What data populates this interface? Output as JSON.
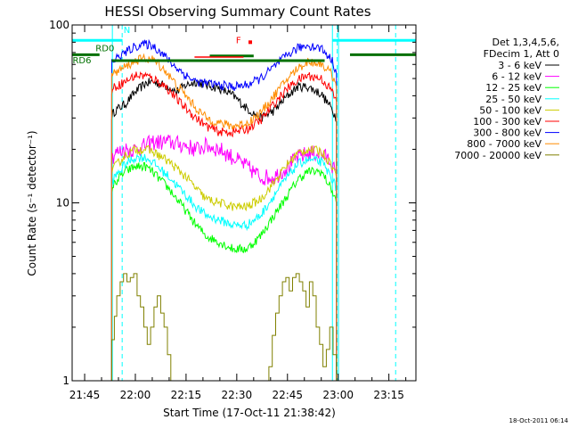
{
  "chart_data": {
    "type": "line",
    "title": "HESSI Observing Summary Count Rates",
    "xlabel": "Start Time (17-Oct-11 21:38:42)",
    "ylabel": "Count Rate (s⁻¹ detector⁻¹)",
    "y_scale": "log",
    "ylim": [
      1,
      100
    ],
    "xlim_minutes": [
      -3.7,
      98
    ],
    "x_ticks": [
      {
        "minute": 0,
        "label": "21:45"
      },
      {
        "minute": 15,
        "label": "22:00"
      },
      {
        "minute": 30,
        "label": "22:15"
      },
      {
        "minute": 45,
        "label": "22:30"
      },
      {
        "minute": 60,
        "label": "22:45"
      },
      {
        "minute": 75,
        "label": "23:00"
      },
      {
        "minute": 90,
        "label": "23:15"
      }
    ],
    "y_ticks": [
      {
        "value": 1,
        "label": "1"
      },
      {
        "value": 10,
        "label": "10"
      },
      {
        "value": 100,
        "label": "100"
      }
    ],
    "legend": {
      "placement": "right",
      "header": [
        "Det 1,3,4,5,6,",
        "FDecim 1, Att 0"
      ]
    },
    "series": [
      {
        "name": "3 - 6 keV",
        "color": "#000000",
        "x": [
          8,
          9,
          12,
          15,
          18,
          20,
          25,
          27,
          30,
          33,
          36,
          40,
          44,
          48,
          52,
          56,
          60,
          63,
          66,
          70,
          73,
          74.5
        ],
        "y": [
          31,
          33,
          36,
          42,
          47,
          48,
          45,
          42,
          46,
          48,
          46,
          44,
          40,
          34,
          30,
          33,
          40,
          45,
          45,
          41,
          34,
          30
        ]
      },
      {
        "name": "6 - 12 keV",
        "color": "#ff00ff",
        "x": [
          8,
          9,
          12,
          15,
          18,
          20,
          25,
          30,
          33,
          36,
          40,
          44,
          48,
          52,
          56,
          60,
          63,
          66,
          70,
          73,
          74.5
        ],
        "y": [
          18,
          19,
          20,
          20,
          21,
          22,
          22,
          21,
          20,
          21,
          20,
          18,
          16,
          14,
          14,
          16,
          18,
          19,
          19,
          17,
          14
        ]
      },
      {
        "name": "12 - 25 keV",
        "color": "#00ff00",
        "x": [
          8,
          9,
          12,
          15,
          18,
          20,
          25,
          30,
          33,
          36,
          40,
          44,
          48,
          52,
          56,
          60,
          63,
          66,
          70,
          73,
          74.5
        ],
        "y": [
          12,
          13,
          15,
          16,
          16,
          15,
          12,
          9,
          7.5,
          6.5,
          6,
          5.5,
          5.5,
          6.5,
          8.5,
          11,
          13.5,
          15,
          15,
          12,
          10
        ]
      },
      {
        "name": "25 - 50 keV",
        "color": "#00ffff",
        "x": [
          8,
          9,
          12,
          15,
          18,
          20,
          25,
          30,
          33,
          36,
          40,
          44,
          48,
          52,
          56,
          60,
          63,
          66,
          70,
          73,
          74.5
        ],
        "y": [
          13,
          14,
          16.5,
          18,
          18,
          17,
          14,
          11,
          9.5,
          8.5,
          8,
          7.5,
          7.5,
          8.5,
          11,
          14,
          16.5,
          17.5,
          17,
          14,
          12
        ]
      },
      {
        "name": "50 - 100 keV",
        "color": "#cccc00",
        "x": [
          8,
          9,
          12,
          15,
          18,
          20,
          25,
          30,
          33,
          36,
          40,
          44,
          48,
          52,
          56,
          60,
          63,
          66,
          70,
          73,
          74.5
        ],
        "y": [
          15,
          16,
          18.5,
          20,
          20,
          19.5,
          17,
          14,
          12,
          10.5,
          10,
          9.5,
          9.5,
          10.5,
          13,
          16.5,
          19,
          20,
          19.5,
          16.5,
          14
        ]
      },
      {
        "name": "100 - 300 keV",
        "color": "#ff0000",
        "x": [
          8,
          9,
          12,
          15,
          18,
          20,
          22,
          24,
          26,
          28,
          30,
          33,
          36,
          40,
          44,
          48,
          52,
          56,
          60,
          63,
          66,
          70,
          73,
          74.5
        ],
        "y": [
          43,
          45,
          48,
          52,
          52,
          50,
          48,
          45,
          41,
          37,
          34,
          30,
          27,
          25,
          25,
          26,
          29,
          36,
          44,
          49,
          52,
          50,
          43,
          37
        ]
      },
      {
        "name": "300 - 800 keV",
        "color": "#0000ff",
        "x": [
          8,
          9,
          12,
          15,
          18,
          20,
          22,
          24,
          26,
          28,
          30,
          33,
          36,
          40,
          44,
          48,
          52,
          56,
          60,
          63,
          66,
          70,
          73,
          74.5
        ],
        "y": [
          62,
          64,
          70,
          76,
          78,
          77,
          72,
          66,
          60,
          56,
          52,
          48,
          47,
          46,
          45,
          46,
          50,
          58,
          68,
          74,
          77,
          74,
          64,
          55
        ]
      },
      {
        "name": "800 - 7000 keV",
        "color": "#ff8c00",
        "x": [
          8,
          9,
          12,
          15,
          18,
          20,
          22,
          24,
          26,
          28,
          30,
          33,
          36,
          40,
          44,
          48,
          52,
          56,
          60,
          63,
          66,
          70,
          73,
          74.5
        ],
        "y": [
          52,
          54,
          58,
          63,
          65,
          64,
          60,
          55,
          49,
          44,
          40,
          34,
          30,
          28,
          27,
          28,
          32,
          40,
          50,
          57,
          62,
          61,
          53,
          46
        ]
      },
      {
        "name": "7000 - 20000 keV",
        "color": "#808000",
        "x": [
          8,
          8.8,
          9.5,
          10.5,
          11.5,
          12.5,
          13.5,
          14.5,
          15.5,
          16.5,
          17.5,
          18.5,
          19.5,
          20.5,
          21.5,
          22.5,
          23.5,
          24.5,
          25.5,
          26.5,
          54.5,
          55.5,
          56.5,
          57.5,
          58.5,
          59.5,
          60.5,
          61.5,
          62.5,
          63.5,
          64.5,
          65.5,
          66.5,
          67.5,
          68.5,
          69.5,
          70.5,
          71.5,
          72.5,
          73.5,
          74.5
        ],
        "y": [
          1.7,
          2.3,
          3.0,
          3.6,
          4.0,
          3.6,
          3.8,
          4.0,
          3.0,
          2.6,
          2.0,
          1.6,
          2.0,
          2.6,
          3.0,
          2.4,
          2.0,
          1.4,
          1.0,
          1.0,
          1.2,
          1.8,
          2.4,
          3.0,
          3.6,
          3.8,
          3.2,
          3.8,
          4.0,
          3.6,
          3.2,
          2.6,
          3.6,
          3.0,
          2.0,
          1.6,
          1.2,
          1.5,
          2.0,
          1.4,
          1.0
        ]
      }
    ],
    "annotations": [
      {
        "text": "N",
        "color": "#00ffff"
      },
      {
        "text": "RD0",
        "color": "#007000"
      },
      {
        "text": "RD6",
        "color": "#007000"
      },
      {
        "text": "F",
        "color": "#ff0000"
      }
    ],
    "status_bars": [
      {
        "name": "N",
        "color": "#00ffff",
        "y": 82,
        "segments": [
          [
            -3.7,
            11.2
          ],
          [
            73.3,
            98
          ]
        ]
      },
      {
        "name": "RD0",
        "color": "#007000",
        "y": 67,
        "segments": [
          [
            37,
            50
          ]
        ]
      },
      {
        "name": "RD6",
        "color": "#007000",
        "y": 63,
        "segments": [
          [
            8,
            71
          ]
        ]
      },
      {
        "name": "RD-left",
        "color": "#007000",
        "y": 68,
        "segments": [
          [
            -3.7,
            4.4
          ],
          [
            78.5,
            98
          ]
        ]
      },
      {
        "name": "F",
        "color": "#ff0000",
        "y": 66,
        "segments": [
          [
            32.5,
            47
          ]
        ]
      }
    ],
    "vlines_solid_cyan": [
      -3.7,
      8.2,
      73.3,
      75.1
    ],
    "vlines_dashed_cyan": [
      11.1,
      74.7,
      92
    ]
  },
  "footer": {
    "timestamp": "18-Oct-2011 06:14"
  }
}
